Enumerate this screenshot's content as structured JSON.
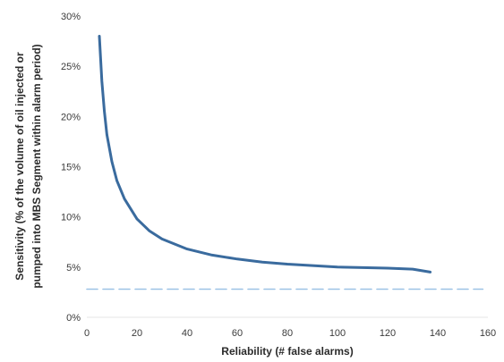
{
  "chart_data": {
    "type": "line",
    "title": "",
    "xlabel": "Reliability (# false alarms)",
    "ylabel_lines": [
      "Sensitivity (% of the volume of oil injected or",
      "pumped into MBS Segment within alarm period)"
    ],
    "xlim": [
      0,
      160
    ],
    "ylim": [
      0,
      30
    ],
    "x_ticks": [
      "0",
      "20",
      "40",
      "60",
      "80",
      "100",
      "120",
      "140",
      "160"
    ],
    "y_ticks": [
      "0%",
      "5%",
      "10%",
      "15%",
      "20%",
      "25%",
      "30%"
    ],
    "grid": false,
    "legend": "none",
    "series": [
      {
        "color": "#3a6b9e",
        "style": "solid",
        "x": [
          5,
          6,
          7,
          8,
          10,
          12,
          15,
          20,
          25,
          30,
          40,
          50,
          60,
          70,
          80,
          90,
          100,
          110,
          120,
          130,
          137
        ],
        "y": [
          28,
          23.5,
          20.5,
          18.2,
          15.5,
          13.6,
          11.8,
          9.8,
          8.6,
          7.8,
          6.8,
          6.2,
          5.8,
          5.5,
          5.3,
          5.15,
          5.0,
          4.95,
          4.9,
          4.8,
          4.5
        ]
      },
      {
        "color": "#9cc3e6",
        "style": "dashed",
        "x": [
          0,
          158
        ],
        "y": [
          2.8,
          2.8
        ]
      }
    ]
  }
}
